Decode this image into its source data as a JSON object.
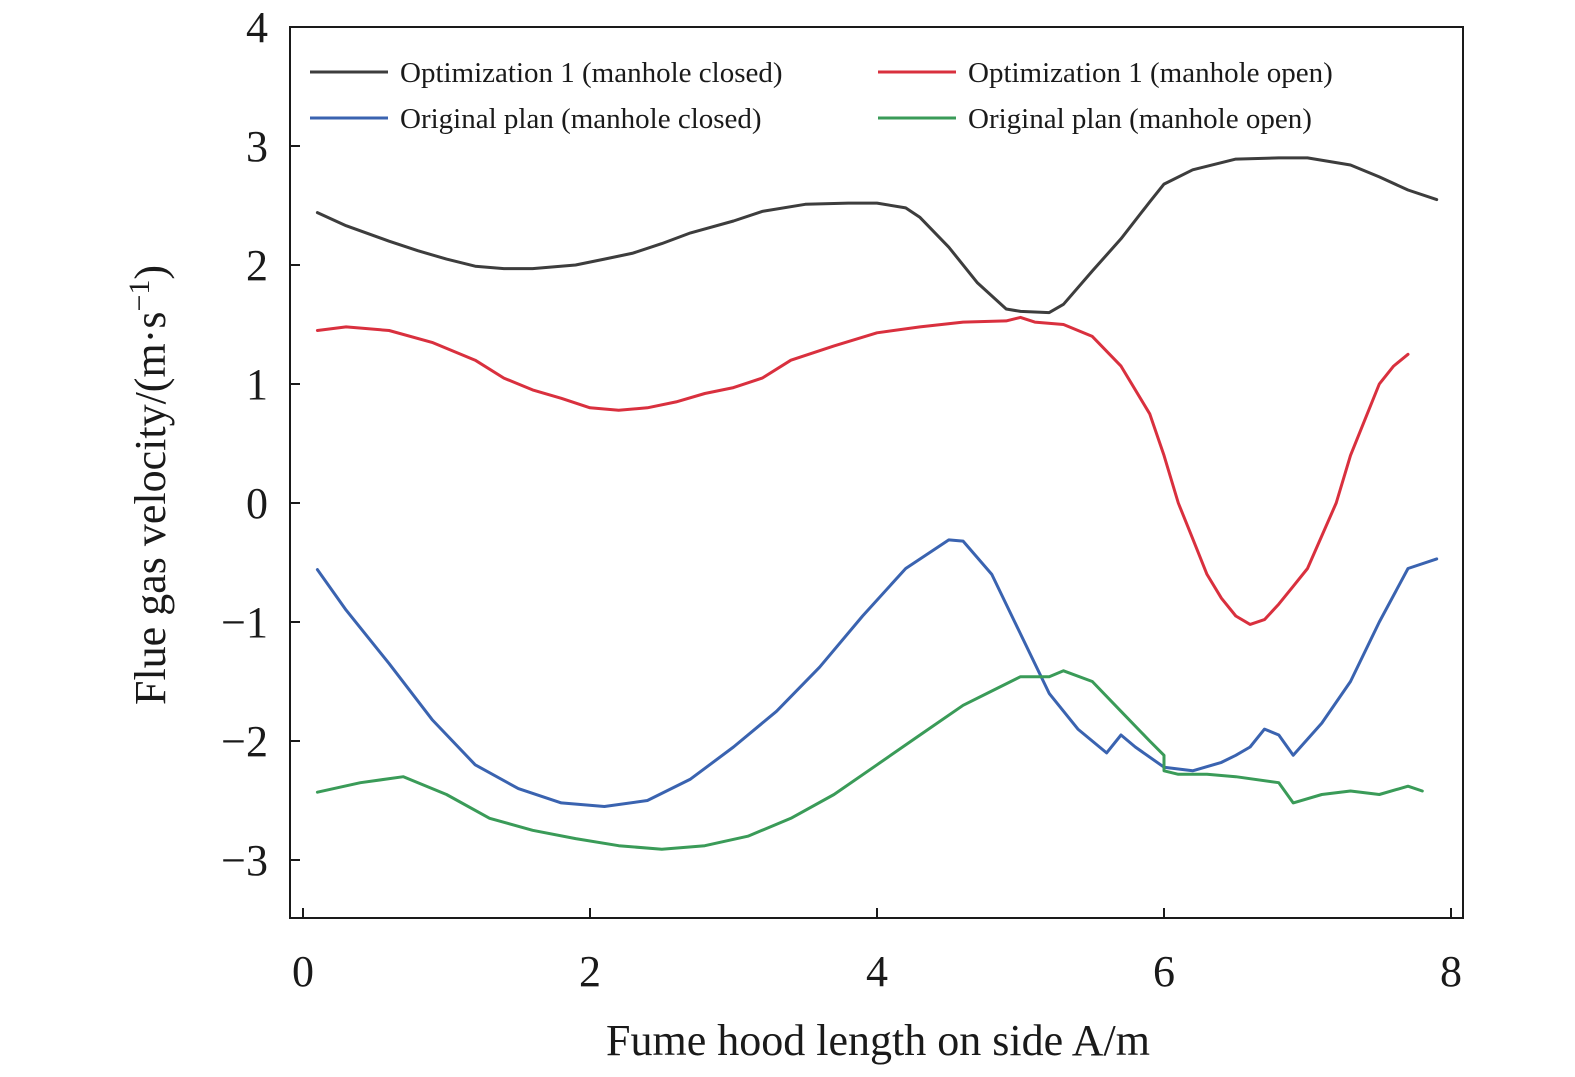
{
  "chart_data": {
    "type": "line",
    "title": "",
    "xlabel": "Fume hood length on side A/m",
    "ylabel_main": "Flue gas velocity/(m·s",
    "ylabel_sup": "−1",
    "ylabel_close": ")",
    "xlim": [
      0,
      8
    ],
    "ylim": [
      -3.5,
      4
    ],
    "xticks": [
      0,
      2,
      4,
      6,
      8
    ],
    "xtick_labels": [
      "0",
      "2",
      "4",
      "6",
      "8"
    ],
    "yticks": [
      -3,
      -2,
      -1,
      0,
      1,
      2,
      3,
      4
    ],
    "ytick_labels": [
      "−3",
      "−2",
      "−1",
      "0",
      "1",
      "2",
      "3",
      "4"
    ],
    "grid": false,
    "legend_position": "top",
    "series": [
      {
        "name": "Optimization 1 (manhole closed)",
        "color": "#3d3d3d",
        "x": [
          0.1,
          0.3,
          0.6,
          0.8,
          1.0,
          1.2,
          1.4,
          1.6,
          1.9,
          2.1,
          2.3,
          2.5,
          2.7,
          3.0,
          3.2,
          3.5,
          3.8,
          4.0,
          4.2,
          4.3,
          4.5,
          4.7,
          4.9,
          5.0,
          5.2,
          5.3,
          5.5,
          5.7,
          5.9,
          6.0,
          6.2,
          6.5,
          6.8,
          7.0,
          7.3,
          7.5,
          7.7,
          7.9
        ],
        "y": [
          2.44,
          2.33,
          2.2,
          2.12,
          2.05,
          1.99,
          1.97,
          1.97,
          2.0,
          2.05,
          2.1,
          2.18,
          2.27,
          2.37,
          2.45,
          2.51,
          2.52,
          2.52,
          2.48,
          2.4,
          2.15,
          1.85,
          1.63,
          1.61,
          1.6,
          1.67,
          1.95,
          2.22,
          2.53,
          2.68,
          2.8,
          2.89,
          2.9,
          2.9,
          2.84,
          2.74,
          2.63,
          2.55
        ]
      },
      {
        "name": "Optimization 1 (manhole open)",
        "color": "#d9303e",
        "x": [
          0.1,
          0.3,
          0.6,
          0.9,
          1.2,
          1.4,
          1.6,
          1.8,
          2.0,
          2.2,
          2.4,
          2.6,
          2.8,
          3.0,
          3.2,
          3.4,
          3.7,
          4.0,
          4.3,
          4.6,
          4.9,
          5.0,
          5.1,
          5.3,
          5.5,
          5.7,
          5.9,
          6.0,
          6.1,
          6.2,
          6.3,
          6.4,
          6.5,
          6.6,
          6.7,
          6.8,
          6.9,
          7.0,
          7.2,
          7.3,
          7.4,
          7.5,
          7.6,
          7.7
        ],
        "y": [
          1.45,
          1.48,
          1.45,
          1.35,
          1.2,
          1.05,
          0.95,
          0.88,
          0.8,
          0.78,
          0.8,
          0.85,
          0.92,
          0.97,
          1.05,
          1.2,
          1.32,
          1.43,
          1.48,
          1.52,
          1.53,
          1.56,
          1.52,
          1.5,
          1.4,
          1.15,
          0.75,
          0.4,
          0.0,
          -0.3,
          -0.6,
          -0.8,
          -0.95,
          -1.02,
          -0.98,
          -0.85,
          -0.7,
          -0.55,
          0.0,
          0.4,
          0.7,
          1.0,
          1.15,
          1.25
        ]
      },
      {
        "name": "Original plan (manhole closed)",
        "color": "#3a63b0",
        "x": [
          0.1,
          0.3,
          0.6,
          0.9,
          1.2,
          1.5,
          1.8,
          2.1,
          2.4,
          2.7,
          3.0,
          3.3,
          3.6,
          3.9,
          4.2,
          4.5,
          4.6,
          4.8,
          5.0,
          5.2,
          5.4,
          5.6,
          5.7,
          5.8,
          6.0,
          6.2,
          6.4,
          6.5,
          6.6,
          6.7,
          6.8,
          6.9,
          7.1,
          7.3,
          7.5,
          7.7,
          7.9
        ],
        "y": [
          -0.56,
          -0.9,
          -1.35,
          -1.82,
          -2.2,
          -2.4,
          -2.52,
          -2.55,
          -2.5,
          -2.32,
          -2.05,
          -1.75,
          -1.38,
          -0.95,
          -0.55,
          -0.31,
          -0.32,
          -0.6,
          -1.1,
          -1.6,
          -1.9,
          -2.1,
          -1.95,
          -2.05,
          -2.22,
          -2.25,
          -2.18,
          -2.12,
          -2.05,
          -1.9,
          -1.95,
          -2.12,
          -1.85,
          -1.5,
          -1.0,
          -0.55,
          -0.47
        ]
      },
      {
        "name": "Original plan (manhole open)",
        "color": "#3a9b58",
        "x": [
          0.1,
          0.4,
          0.7,
          1.0,
          1.3,
          1.6,
          1.9,
          2.2,
          2.5,
          2.8,
          3.1,
          3.4,
          3.7,
          4.0,
          4.3,
          4.6,
          4.8,
          5.0,
          5.2,
          5.3,
          5.5,
          5.7,
          5.9,
          6.0,
          6.0,
          6.1,
          6.3,
          6.5,
          6.8,
          6.9,
          7.1,
          7.3,
          7.5,
          7.7,
          7.8
        ],
        "y": [
          -2.43,
          -2.35,
          -2.3,
          -2.45,
          -2.65,
          -2.75,
          -2.82,
          -2.88,
          -2.91,
          -2.88,
          -2.8,
          -2.65,
          -2.45,
          -2.2,
          -1.95,
          -1.7,
          -1.58,
          -1.46,
          -1.46,
          -1.41,
          -1.5,
          -1.75,
          -2.0,
          -2.12,
          -2.25,
          -2.28,
          -2.28,
          -2.3,
          -2.35,
          -2.52,
          -2.45,
          -2.42,
          -2.45,
          -2.38,
          -2.42
        ]
      }
    ]
  }
}
